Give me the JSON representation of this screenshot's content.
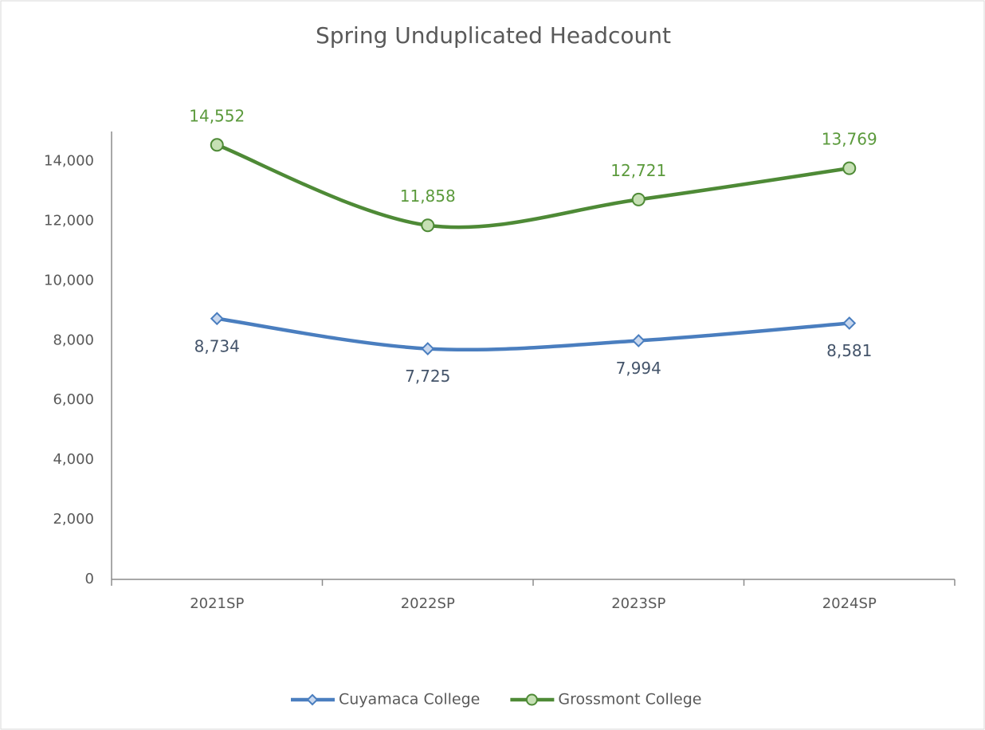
{
  "chart_data": {
    "type": "line",
    "title": "Spring Unduplicated Headcount",
    "categories": [
      "2021SP",
      "2022SP",
      "2023SP",
      "2024SP"
    ],
    "series": [
      {
        "name": "Cuyamaca College",
        "color": "#4a7ebf",
        "marker": "diamond",
        "marker_fill": "#c9d8ee",
        "label_color": "#44546a",
        "values": [
          8734,
          7725,
          7994,
          8581
        ],
        "value_labels": [
          "8,734",
          "7,725",
          "7,994",
          "8,581"
        ]
      },
      {
        "name": "Grossmont College",
        "color": "#4e8a36",
        "marker": "circle",
        "marker_fill": "#c6e0b4",
        "label_color": "#5b9a3c",
        "values": [
          14552,
          11858,
          12721,
          13769
        ],
        "value_labels": [
          "14,552",
          "11,858",
          "12,721",
          "13,769"
        ]
      }
    ],
    "ylim": [
      0,
      15000
    ],
    "yticks": [
      0,
      {
        "value": 2000,
        "label": "2,000"
      },
      {
        "value": 4000,
        "label": "4,000"
      },
      {
        "value": 6000,
        "label": "6,000"
      },
      {
        "value": 8000,
        "label": "8,000"
      },
      {
        "value": 10000,
        "label": "10,000"
      },
      {
        "value": 12000,
        "label": "12,000"
      },
      {
        "value": 14000,
        "label": "14,000"
      }
    ],
    "grid": false,
    "smooth": true,
    "legend": "bottom"
  }
}
